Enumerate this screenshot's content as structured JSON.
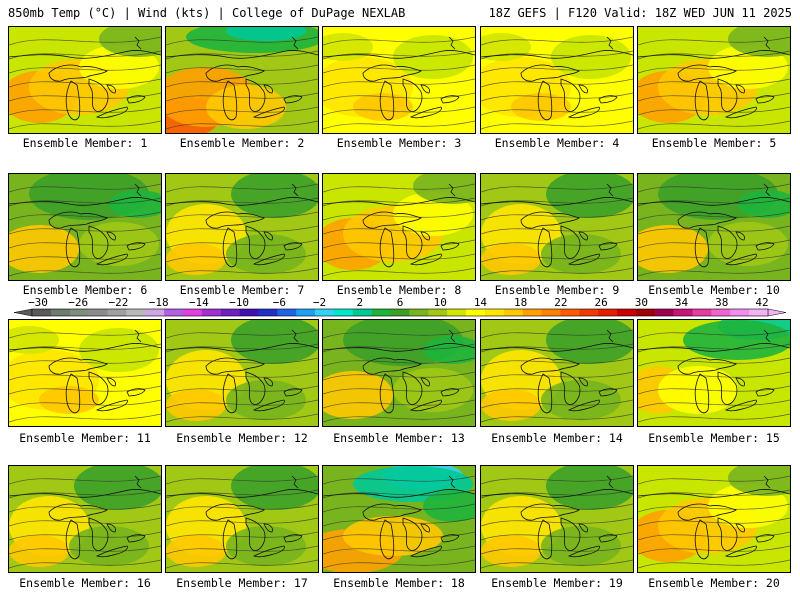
{
  "header": {
    "left_title": "850mb Temp (°C) | Wind (kts) | College of DuPage NEXLAB",
    "right_title": "18Z GEFS | F120 Valid: 18Z WED JUN 11 2025"
  },
  "panels": [
    {
      "label": "Ensemble Member: 1",
      "scheme": "warm"
    },
    {
      "label": "Ensemble Member: 2",
      "scheme": "hot"
    },
    {
      "label": "Ensemble Member: 3",
      "scheme": "yellow"
    },
    {
      "label": "Ensemble Member: 4",
      "scheme": "yellow"
    },
    {
      "label": "Ensemble Member: 5",
      "scheme": "warm"
    },
    {
      "label": "Ensemble Member: 6",
      "scheme": "green"
    },
    {
      "label": "Ensemble Member: 7",
      "scheme": "mixed"
    },
    {
      "label": "Ensemble Member: 8",
      "scheme": "warm"
    },
    {
      "label": "Ensemble Member: 9",
      "scheme": "mixed"
    },
    {
      "label": "Ensemble Member: 10",
      "scheme": "green"
    },
    {
      "label": "Ensemble Member: 11",
      "scheme": "yellow"
    },
    {
      "label": "Ensemble Member: 12",
      "scheme": "mixed"
    },
    {
      "label": "Ensemble Member: 13",
      "scheme": "green"
    },
    {
      "label": "Ensemble Member: 14",
      "scheme": "mixed"
    },
    {
      "label": "Ensemble Member: 15",
      "scheme": "teal"
    },
    {
      "label": "Ensemble Member: 16",
      "scheme": "mixed"
    },
    {
      "label": "Ensemble Member: 17",
      "scheme": "mixed"
    },
    {
      "label": "Ensemble Member: 18",
      "scheme": "cyan"
    },
    {
      "label": "Ensemble Member: 19",
      "scheme": "mixed"
    },
    {
      "label": "Ensemble Member: 20",
      "scheme": "warm"
    }
  ],
  "colorbar": {
    "tick_labels": [
      "−30",
      "−26",
      "−22",
      "−18",
      "−14",
      "−10",
      "−6",
      "−2",
      "2",
      "6",
      "10",
      "14",
      "18",
      "22",
      "26",
      "30",
      "34",
      "38",
      "42"
    ],
    "colors": [
      "#5a5a5a",
      "#6e7b6e",
      "#7f8f7f",
      "#8c8c8c",
      "#a0a0a0",
      "#b9b9b9",
      "#cfa5e6",
      "#b060e0",
      "#e040e0",
      "#a030d0",
      "#7020c0",
      "#4010b0",
      "#2030c8",
      "#1e64e6",
      "#1ea0f0",
      "#32d2f5",
      "#00e6c8",
      "#00c896",
      "#1eb43c",
      "#3ca028",
      "#78b41e",
      "#a0c814",
      "#d2e600",
      "#ffff00",
      "#ffe600",
      "#ffc800",
      "#ffa000",
      "#ff8200",
      "#ff5a00",
      "#f03c00",
      "#e61e00",
      "#c80000",
      "#a00000",
      "#a00050",
      "#c81478",
      "#e63ca0",
      "#f064d2",
      "#f08cf0",
      "#f0b4f5"
    ]
  }
}
